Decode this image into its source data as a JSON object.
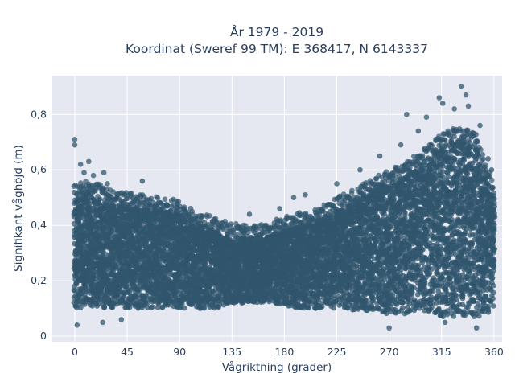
{
  "chart_data": {
    "type": "scatter",
    "title_lines": [
      "År 1979 - 2019",
      "Koordinat (Sweref 99 TM): E 368417, N 6143337"
    ],
    "xlabel": "Vågriktning (grader)",
    "ylabel": "Signifikant våghöjd (m)",
    "xlim": [
      -20,
      367
    ],
    "ylim": [
      -0.02,
      0.94
    ],
    "xticks": [
      0,
      45,
      90,
      135,
      180,
      225,
      270,
      315,
      360
    ],
    "yticks": [
      0,
      0.2,
      0.4,
      0.6,
      0.8
    ],
    "ytick_labels": [
      "0",
      "0,2",
      "0,4",
      "0,6",
      "0,8"
    ],
    "grid": true,
    "marker_color": "#30566e",
    "background_color": "#e5e8f0",
    "envelope": {
      "direction": [
        0,
        10,
        20,
        30,
        45,
        60,
        75,
        90,
        105,
        120,
        135,
        150,
        165,
        180,
        195,
        210,
        225,
        240,
        255,
        270,
        285,
        300,
        315,
        325,
        335,
        345,
        355,
        360
      ],
      "lower": [
        0.1,
        0.1,
        0.1,
        0.1,
        0.1,
        0.1,
        0.1,
        0.1,
        0.1,
        0.1,
        0.12,
        0.12,
        0.12,
        0.11,
        0.1,
        0.1,
        0.1,
        0.09,
        0.09,
        0.08,
        0.08,
        0.08,
        0.07,
        0.07,
        0.07,
        0.07,
        0.08,
        0.1
      ],
      "upper": [
        0.5,
        0.52,
        0.5,
        0.48,
        0.47,
        0.46,
        0.45,
        0.44,
        0.4,
        0.38,
        0.36,
        0.35,
        0.36,
        0.38,
        0.4,
        0.42,
        0.45,
        0.48,
        0.52,
        0.55,
        0.58,
        0.63,
        0.68,
        0.7,
        0.7,
        0.68,
        0.55,
        0.5
      ]
    },
    "outliers": [
      {
        "x": 0,
        "y": 0.71
      },
      {
        "x": 0,
        "y": 0.69
      },
      {
        "x": 2,
        "y": 0.04
      },
      {
        "x": 5,
        "y": 0.62
      },
      {
        "x": 8,
        "y": 0.59
      },
      {
        "x": 12,
        "y": 0.63
      },
      {
        "x": 16,
        "y": 0.58
      },
      {
        "x": 24,
        "y": 0.05
      },
      {
        "x": 25,
        "y": 0.59
      },
      {
        "x": 28,
        "y": 0.55
      },
      {
        "x": 40,
        "y": 0.06
      },
      {
        "x": 58,
        "y": 0.56
      },
      {
        "x": 88,
        "y": 0.48
      },
      {
        "x": 95,
        "y": 0.45
      },
      {
        "x": 150,
        "y": 0.44
      },
      {
        "x": 176,
        "y": 0.46
      },
      {
        "x": 188,
        "y": 0.5
      },
      {
        "x": 198,
        "y": 0.51
      },
      {
        "x": 225,
        "y": 0.55
      },
      {
        "x": 245,
        "y": 0.6
      },
      {
        "x": 262,
        "y": 0.65
      },
      {
        "x": 270,
        "y": 0.03
      },
      {
        "x": 280,
        "y": 0.69
      },
      {
        "x": 285,
        "y": 0.8
      },
      {
        "x": 295,
        "y": 0.74
      },
      {
        "x": 302,
        "y": 0.79
      },
      {
        "x": 313,
        "y": 0.86
      },
      {
        "x": 316,
        "y": 0.84
      },
      {
        "x": 318,
        "y": 0.05
      },
      {
        "x": 326,
        "y": 0.82
      },
      {
        "x": 332,
        "y": 0.9
      },
      {
        "x": 336,
        "y": 0.87
      },
      {
        "x": 338,
        "y": 0.83
      },
      {
        "x": 345,
        "y": 0.03
      },
      {
        "x": 348,
        "y": 0.76
      },
      {
        "x": 355,
        "y": 0.64
      },
      {
        "x": 358,
        "y": 0.6
      }
    ]
  }
}
